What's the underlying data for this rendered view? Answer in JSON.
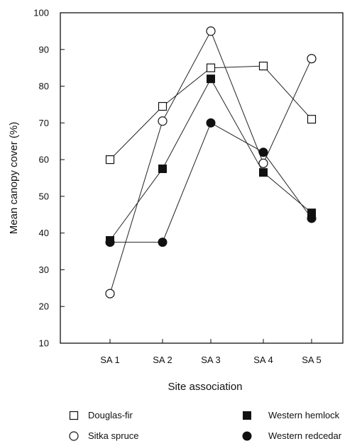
{
  "chart_data": {
    "type": "line",
    "title": "",
    "xlabel": "Site association",
    "ylabel": "Mean canopy cover (%)",
    "categories": [
      "SA 1",
      "SA 2",
      "SA 3",
      "SA 4",
      "SA 5"
    ],
    "ylim": [
      10,
      100
    ],
    "yticks": [
      10,
      20,
      30,
      40,
      50,
      60,
      70,
      80,
      90,
      100
    ],
    "grid": false,
    "legend_position": "bottom",
    "series": [
      {
        "name": "Douglas-fir",
        "marker": "open-square",
        "values": [
          60,
          74.5,
          85,
          85.5,
          71
        ]
      },
      {
        "name": "Sitka spruce",
        "marker": "open-circle",
        "values": [
          23.5,
          70.5,
          95,
          59,
          87.5
        ]
      },
      {
        "name": "Western hemlock",
        "marker": "filled-square",
        "values": [
          38,
          57.5,
          82,
          56.5,
          45.5
        ]
      },
      {
        "name": "Western redcedar",
        "marker": "filled-circle",
        "values": [
          37.5,
          37.5,
          70,
          62,
          44
        ]
      }
    ]
  }
}
